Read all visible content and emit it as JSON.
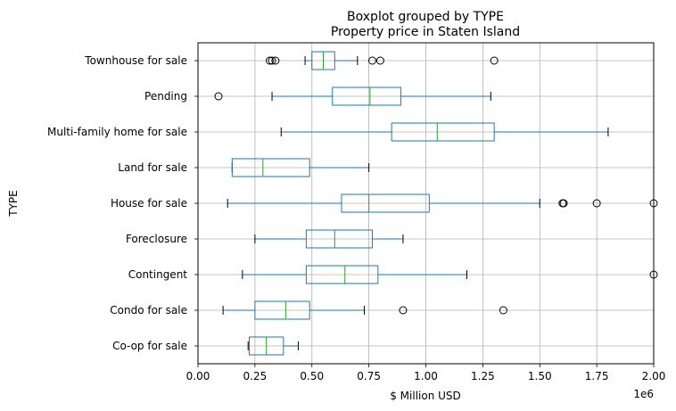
{
  "chart_data": {
    "type": "boxplot",
    "orientation": "horizontal",
    "suptitle": "Boxplot grouped by TYPE",
    "title": "Property price in Staten Island",
    "xlabel": "$ Million USD",
    "ylabel": "TYPE",
    "offset_label": "1e6",
    "xlim": [
      0,
      2000000
    ],
    "grid": true,
    "x_ticks": [
      {
        "value": 0,
        "label": "0.00"
      },
      {
        "value": 250000,
        "label": "0.25"
      },
      {
        "value": 500000,
        "label": "0.50"
      },
      {
        "value": 750000,
        "label": "0.75"
      },
      {
        "value": 1000000,
        "label": "1.00"
      },
      {
        "value": 1250000,
        "label": "1.25"
      },
      {
        "value": 1500000,
        "label": "1.50"
      },
      {
        "value": 1750000,
        "label": "1.75"
      },
      {
        "value": 2000000,
        "label": "2.00"
      }
    ],
    "colors": {
      "box": "#1f77b4",
      "median": "#2ca02c",
      "grid": "#b0b0b0",
      "whisker_cap": "#000000"
    },
    "categories": [
      {
        "name": "Co-op for sale",
        "whislo": 220000,
        "q1": 225000,
        "med": 300000,
        "q3": 375000,
        "whishi": 440000,
        "fliers": []
      },
      {
        "name": "Condo for sale",
        "whislo": 110000,
        "q1": 250000,
        "med": 385000,
        "q3": 490000,
        "whishi": 730000,
        "fliers": [
          900000,
          1340000
        ]
      },
      {
        "name": "Contingent",
        "whislo": 195000,
        "q1": 475000,
        "med": 645000,
        "q3": 790000,
        "whishi": 1180000,
        "fliers": [
          2000000
        ]
      },
      {
        "name": "Foreclosure",
        "whislo": 250000,
        "q1": 475000,
        "med": 600000,
        "q3": 765000,
        "whishi": 900000,
        "fliers": []
      },
      {
        "name": "House for sale",
        "whislo": 130000,
        "q1": 630000,
        "med": 750000,
        "q3": 1015000,
        "whishi": 1500000,
        "fliers": [
          1600000,
          1605000,
          1750000,
          2000000
        ]
      },
      {
        "name": "Land for sale",
        "whislo": 150000,
        "q1": 150000,
        "med": 285000,
        "q3": 490000,
        "whishi": 750000,
        "fliers": []
      },
      {
        "name": "Multi-family home for sale",
        "whislo": 365000,
        "q1": 850000,
        "med": 1050000,
        "q3": 1300000,
        "whishi": 1800000,
        "fliers": []
      },
      {
        "name": "Pending",
        "whislo": 325000,
        "q1": 590000,
        "med": 755000,
        "q3": 890000,
        "whishi": 1285000,
        "fliers": [
          90000
        ]
      },
      {
        "name": "Townhouse for sale",
        "whislo": 470000,
        "q1": 500000,
        "med": 550000,
        "q3": 600000,
        "whishi": 700000,
        "fliers": [
          315000,
          325000,
          340000,
          765000,
          800000,
          1300000
        ]
      }
    ]
  }
}
